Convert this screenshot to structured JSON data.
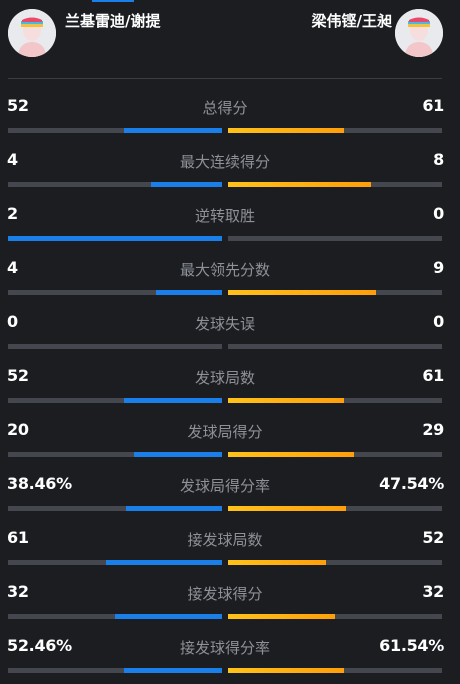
{
  "header": {
    "team_left": "兰基雷迪/谢提",
    "team_right": "梁伟铿/王昶"
  },
  "colors": {
    "background": "#1b1d21",
    "left_accent": "#1a7fe8",
    "right_accent": "#ffb21a",
    "bar_track": "#44474d",
    "label": "#8e9198"
  },
  "stats": [
    {
      "label": "总得分",
      "left": "52",
      "right": "61",
      "left_fill": 0.46,
      "right_fill": 0.54
    },
    {
      "label": "最大连续得分",
      "left": "4",
      "right": "8",
      "left_fill": 0.33,
      "right_fill": 0.67
    },
    {
      "label": "逆转取胜",
      "left": "2",
      "right": "0",
      "left_fill": 1.0,
      "right_fill": 0.0
    },
    {
      "label": "最大领先分数",
      "left": "4",
      "right": "9",
      "left_fill": 0.31,
      "right_fill": 0.69
    },
    {
      "label": "发球失误",
      "left": "0",
      "right": "0",
      "left_fill": 0.0,
      "right_fill": 0.0
    },
    {
      "label": "发球局数",
      "left": "52",
      "right": "61",
      "left_fill": 0.46,
      "right_fill": 0.54
    },
    {
      "label": "发球局得分",
      "left": "20",
      "right": "29",
      "left_fill": 0.41,
      "right_fill": 0.59
    },
    {
      "label": "发球局得分率",
      "left": "38.46%",
      "right": "47.54%",
      "left_fill": 0.45,
      "right_fill": 0.55
    },
    {
      "label": "接发球局数",
      "left": "61",
      "right": "52",
      "left_fill": 0.54,
      "right_fill": 0.46
    },
    {
      "label": "接发球得分",
      "left": "32",
      "right": "32",
      "left_fill": 0.5,
      "right_fill": 0.5
    },
    {
      "label": "接发球得分率",
      "left": "52.46%",
      "right": "61.54%",
      "left_fill": 0.46,
      "right_fill": 0.54
    }
  ]
}
